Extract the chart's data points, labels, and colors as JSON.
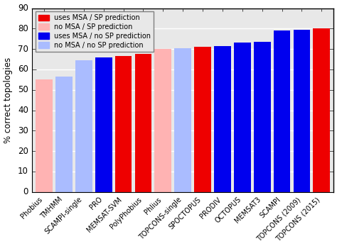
{
  "categories": [
    "Phobius",
    "TMHMM",
    "SCAMPI-single",
    "PRO",
    "MEMSAT-SVM",
    "PolyPhobius",
    "Phlius",
    "TOPCONS-single",
    "SPOCTOPUS",
    "PRODIV",
    "OCTOPUS",
    "MEMSAT3",
    "SCAMPI",
    "TOPCONS (2009)",
    "TOPCONS (2015)"
  ],
  "values": [
    55.0,
    56.5,
    64.5,
    66.0,
    66.5,
    67.5,
    70.0,
    70.5,
    71.0,
    71.5,
    73.0,
    73.5,
    79.0,
    79.5,
    80.0
  ],
  "colors": [
    "#FFB3B3",
    "#AABCFF",
    "#AABCFF",
    "#0000EE",
    "#EE0000",
    "#EE0000",
    "#FFB3B3",
    "#AABCFF",
    "#EE0000",
    "#0000EE",
    "#0000EE",
    "#0000EE",
    "#0000EE",
    "#0000EE",
    "#EE0000"
  ],
  "legend": [
    {
      "label": "uses MSA / SP prediction",
      "color": "#EE0000"
    },
    {
      "label": "no MSA / SP prediction",
      "color": "#FFB3B3"
    },
    {
      "label": "uses MSA / no SP prediction",
      "color": "#0000EE"
    },
    {
      "label": "no MSA / no SP prediction",
      "color": "#AABCFF"
    }
  ],
  "ylabel": "% correct topologies",
  "ylim": [
    0,
    90
  ],
  "yticks": [
    0,
    10,
    20,
    30,
    40,
    50,
    60,
    70,
    80,
    90
  ],
  "bar_width": 0.85,
  "xlabel_fontsize": 7.0,
  "ylabel_fontsize": 8.5,
  "ytick_fontsize": 8.5,
  "legend_fontsize": 7.0,
  "bg_color": "#E8E8E8"
}
